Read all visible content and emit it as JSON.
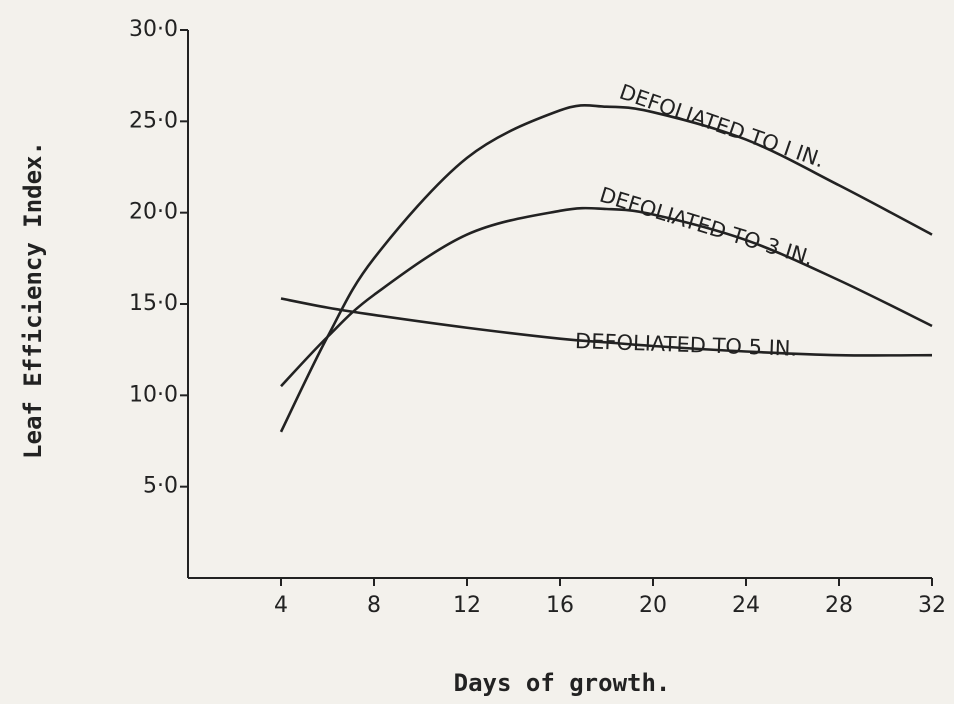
{
  "chart_data": {
    "type": "line",
    "x_label": "Days of growth.",
    "y_label": "Leaf Efficiency Index.",
    "x": [
      4,
      6,
      8,
      12,
      16,
      18,
      20,
      24,
      28,
      32
    ],
    "series": [
      {
        "name": "DEFOLIATED TO I IN.",
        "color": "#222222",
        "values": [
          8.0,
          13.2,
          17.5,
          23.0,
          25.6,
          25.8,
          25.5,
          24.0,
          21.5,
          18.8
        ]
      },
      {
        "name": "DEFOLIATED TO 3 IN.",
        "color": "#222222",
        "values": [
          10.5,
          13.2,
          15.5,
          18.8,
          20.1,
          20.2,
          19.9,
          18.5,
          16.3,
          13.8
        ]
      },
      {
        "name": "DEFOLIATED TO 5 IN.",
        "color": "#222222",
        "values": [
          15.3,
          14.8,
          14.4,
          13.7,
          13.1,
          12.9,
          12.7,
          12.4,
          12.2,
          12.2
        ]
      }
    ],
    "xlim": [
      0,
      32
    ],
    "xticks": [
      4,
      8,
      12,
      16,
      20,
      24,
      28,
      32
    ],
    "ylim": [
      0,
      30
    ],
    "yticks": [
      {
        "value": 5,
        "label": "5·0"
      },
      {
        "value": 10,
        "label": "10·0"
      },
      {
        "value": 15,
        "label": "15·0"
      },
      {
        "value": 20,
        "label": "20·0"
      },
      {
        "value": 25,
        "label": "25·0"
      },
      {
        "value": 30,
        "label": "30·0"
      }
    ]
  }
}
